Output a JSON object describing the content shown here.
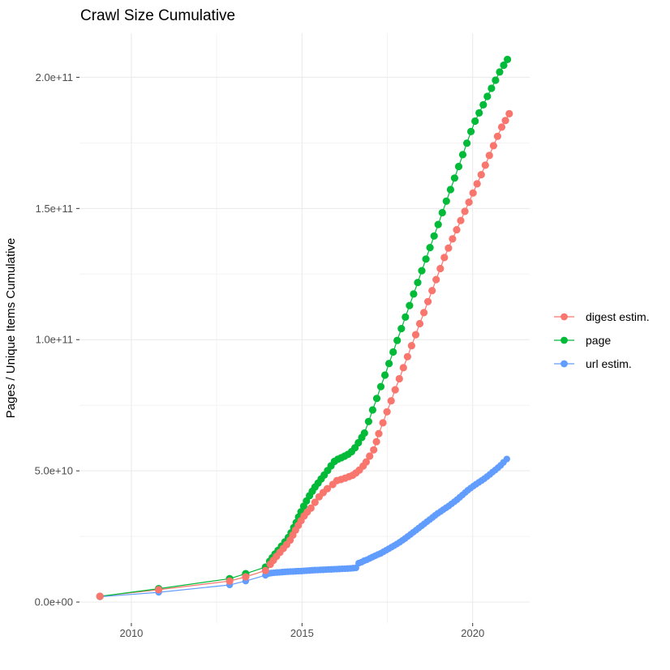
{
  "title": "Crawl Size Cumulative",
  "axes": {
    "y_title": "Pages / Unique Items Cumulative",
    "x_title": "",
    "y_ticks": [
      {
        "label": "0.0e+00",
        "value": 0
      },
      {
        "label": "5.0e+10",
        "value": 50
      },
      {
        "label": "1.0e+11",
        "value": 100
      },
      {
        "label": "1.5e+11",
        "value": 150
      },
      {
        "label": "2.0e+11",
        "value": 200
      }
    ],
    "x_ticks": [
      {
        "label": "2010",
        "value": 2010
      },
      {
        "label": "2015",
        "value": 2015
      },
      {
        "label": "2020",
        "value": 2020
      }
    ]
  },
  "legend": {
    "items": [
      {
        "label": "digest estim.",
        "color": "#F8766D"
      },
      {
        "label": "page",
        "color": "#00BA38"
      },
      {
        "label": "url estim.",
        "color": "#619CFF"
      }
    ]
  },
  "colors": {
    "background": "#FFFFFF",
    "grid_major": "#E9E9E9",
    "grid_minor": "#F3F3F3",
    "tick": "#333333",
    "tick_label": "#4D4D4D",
    "text": "#000000",
    "digest": "#F8766D",
    "page": "#00BA38",
    "url": "#619CFF"
  },
  "chart_data": {
    "type": "line",
    "title": "Crawl Size Cumulative",
    "xlabel": "",
    "ylabel": "Pages / Unique Items Cumulative",
    "y_unit": "values in billions (1e9); axis labels shown in scientific notation",
    "xlim": [
      2008.48,
      2021.67
    ],
    "ylim": [
      -8,
      216.8
    ],
    "x_breaks": [
      2010,
      2015,
      2020
    ],
    "x_minor_breaks": [
      2012.5,
      2017.5
    ],
    "y_breaks": [
      0,
      50,
      100,
      150,
      200
    ],
    "y_minor_breaks": [
      25,
      75,
      125,
      175
    ],
    "grid": true,
    "legend_position": "right",
    "series": [
      {
        "name": "digest estim.",
        "color": "#F8766D",
        "points": [
          [
            2009.08,
            2.2
          ],
          [
            2010.8,
            4.7
          ],
          [
            2012.88,
            8.0
          ],
          [
            2013.35,
            9.6
          ],
          [
            2013.93,
            12.0
          ],
          [
            2014.07,
            14.4
          ],
          [
            2014.16,
            15.9
          ],
          [
            2014.25,
            17.4
          ],
          [
            2014.35,
            18.9
          ],
          [
            2014.45,
            20.4
          ],
          [
            2014.55,
            21.9
          ],
          [
            2014.65,
            23.6
          ],
          [
            2014.73,
            25.5
          ],
          [
            2014.81,
            27.4
          ],
          [
            2014.89,
            29.2
          ],
          [
            2014.97,
            31.0
          ],
          [
            2015.06,
            32.8
          ],
          [
            2015.15,
            34.3
          ],
          [
            2015.26,
            35.8
          ],
          [
            2015.38,
            38.0
          ],
          [
            2015.5,
            40.1
          ],
          [
            2015.62,
            41.7
          ],
          [
            2015.74,
            43.2
          ],
          [
            2015.9,
            44.8
          ],
          [
            2016.02,
            46.3
          ],
          [
            2016.14,
            46.7
          ],
          [
            2016.26,
            47.2
          ],
          [
            2016.38,
            47.8
          ],
          [
            2016.48,
            48.3
          ],
          [
            2016.58,
            49.2
          ],
          [
            2016.68,
            50.3
          ],
          [
            2016.79,
            51.8
          ],
          [
            2016.88,
            53.4
          ],
          [
            2016.98,
            55.6
          ],
          [
            2017.1,
            58.0
          ],
          [
            2017.18,
            61.1
          ],
          [
            2017.25,
            64.2
          ],
          [
            2017.37,
            68.3
          ],
          [
            2017.49,
            72.5
          ],
          [
            2017.61,
            76.7
          ],
          [
            2017.73,
            80.9
          ],
          [
            2017.85,
            85.1
          ],
          [
            2017.97,
            89.3
          ],
          [
            2018.09,
            93.5
          ],
          [
            2018.21,
            97.7
          ],
          [
            2018.33,
            101.9
          ],
          [
            2018.45,
            106.1
          ],
          [
            2018.57,
            110.3
          ],
          [
            2018.69,
            114.5
          ],
          [
            2018.81,
            118.7
          ],
          [
            2018.93,
            122.9
          ],
          [
            2019.05,
            127.1
          ],
          [
            2019.17,
            131.3
          ],
          [
            2019.29,
            134.9
          ],
          [
            2019.41,
            138.4
          ],
          [
            2019.53,
            141.9
          ],
          [
            2019.65,
            145.4
          ],
          [
            2019.77,
            148.9
          ],
          [
            2019.89,
            152.4
          ],
          [
            2020.01,
            155.9
          ],
          [
            2020.13,
            159.4
          ],
          [
            2020.25,
            162.9
          ],
          [
            2020.37,
            166.5
          ],
          [
            2020.49,
            170.2
          ],
          [
            2020.61,
            173.9
          ],
          [
            2020.73,
            177.5
          ],
          [
            2020.85,
            181.0
          ],
          [
            2020.96,
            183.5
          ],
          [
            2021.07,
            186.1
          ]
        ]
      },
      {
        "name": "page",
        "color": "#00BA38",
        "points": [
          [
            2009.08,
            2.15
          ],
          [
            2010.8,
            5.1
          ],
          [
            2012.88,
            8.9
          ],
          [
            2013.35,
            10.8
          ],
          [
            2013.93,
            13.3
          ],
          [
            2014.05,
            15.5
          ],
          [
            2014.13,
            16.9
          ],
          [
            2014.21,
            18.3
          ],
          [
            2014.3,
            19.7
          ],
          [
            2014.4,
            21.3
          ],
          [
            2014.5,
            22.9
          ],
          [
            2014.6,
            24.6
          ],
          [
            2014.68,
            26.4
          ],
          [
            2014.76,
            28.4
          ],
          [
            2014.83,
            30.3
          ],
          [
            2014.9,
            32.4
          ],
          [
            2014.97,
            34.4
          ],
          [
            2015.05,
            36.5
          ],
          [
            2015.13,
            38.5
          ],
          [
            2015.22,
            40.5
          ],
          [
            2015.3,
            42.2
          ],
          [
            2015.38,
            43.8
          ],
          [
            2015.47,
            45.3
          ],
          [
            2015.56,
            46.9
          ],
          [
            2015.65,
            48.4
          ],
          [
            2015.75,
            50.1
          ],
          [
            2015.85,
            51.9
          ],
          [
            2015.95,
            53.6
          ],
          [
            2016.05,
            54.4
          ],
          [
            2016.15,
            55.0
          ],
          [
            2016.25,
            55.6
          ],
          [
            2016.35,
            56.3
          ],
          [
            2016.45,
            57.3
          ],
          [
            2016.55,
            58.8
          ],
          [
            2016.65,
            60.7
          ],
          [
            2016.75,
            62.7
          ],
          [
            2016.83,
            64.4
          ],
          [
            2016.95,
            68.8
          ],
          [
            2017.07,
            73.2
          ],
          [
            2017.19,
            77.6
          ],
          [
            2017.31,
            82.1
          ],
          [
            2017.43,
            86.5
          ],
          [
            2017.55,
            90.9
          ],
          [
            2017.67,
            95.3
          ],
          [
            2017.79,
            99.7
          ],
          [
            2017.91,
            104.2
          ],
          [
            2018.03,
            108.6
          ],
          [
            2018.15,
            113.0
          ],
          [
            2018.27,
            117.4
          ],
          [
            2018.39,
            121.8
          ],
          [
            2018.51,
            126.3
          ],
          [
            2018.63,
            130.7
          ],
          [
            2018.75,
            135.1
          ],
          [
            2018.87,
            139.5
          ],
          [
            2018.99,
            143.9
          ],
          [
            2019.11,
            148.4
          ],
          [
            2019.23,
            152.8
          ],
          [
            2019.35,
            157.2
          ],
          [
            2019.47,
            161.6
          ],
          [
            2019.59,
            166.0
          ],
          [
            2019.71,
            170.5
          ],
          [
            2019.83,
            174.9
          ],
          [
            2019.95,
            179.3
          ],
          [
            2020.07,
            183.3
          ],
          [
            2020.19,
            186.4
          ],
          [
            2020.31,
            189.5
          ],
          [
            2020.43,
            192.7
          ],
          [
            2020.55,
            195.8
          ],
          [
            2020.67,
            198.9
          ],
          [
            2020.79,
            202.0
          ],
          [
            2020.91,
            204.6
          ],
          [
            2021.02,
            206.8
          ]
        ]
      },
      {
        "name": "url estim.",
        "color": "#619CFF",
        "points": [
          [
            2009.08,
            2.0
          ],
          [
            2010.8,
            3.7
          ],
          [
            2012.88,
            6.5
          ],
          [
            2013.35,
            8.0
          ],
          [
            2013.93,
            10.2
          ],
          [
            2014.03,
            10.9
          ],
          [
            2014.1,
            11.05
          ],
          [
            2014.18,
            11.15
          ],
          [
            2014.26,
            11.25
          ],
          [
            2014.34,
            11.3
          ],
          [
            2014.42,
            11.4
          ],
          [
            2014.5,
            11.5
          ],
          [
            2014.58,
            11.55
          ],
          [
            2014.66,
            11.6
          ],
          [
            2014.74,
            11.65
          ],
          [
            2014.82,
            11.7
          ],
          [
            2014.9,
            11.75
          ],
          [
            2014.98,
            11.8
          ],
          [
            2015.06,
            11.9
          ],
          [
            2015.14,
            11.95
          ],
          [
            2015.22,
            12.0
          ],
          [
            2015.3,
            12.1
          ],
          [
            2015.38,
            12.15
          ],
          [
            2015.46,
            12.2
          ],
          [
            2015.54,
            12.25
          ],
          [
            2015.62,
            12.3
          ],
          [
            2015.7,
            12.35
          ],
          [
            2015.78,
            12.4
          ],
          [
            2015.86,
            12.45
          ],
          [
            2015.94,
            12.5
          ],
          [
            2016.02,
            12.55
          ],
          [
            2016.1,
            12.6
          ],
          [
            2016.18,
            12.65
          ],
          [
            2016.26,
            12.7
          ],
          [
            2016.34,
            12.75
          ],
          [
            2016.42,
            12.8
          ],
          [
            2016.5,
            12.9
          ],
          [
            2016.58,
            13.0
          ],
          [
            2016.66,
            14.8
          ],
          [
            2016.74,
            15.2
          ],
          [
            2016.82,
            15.7
          ],
          [
            2016.9,
            16.1
          ],
          [
            2016.98,
            16.6
          ],
          [
            2017.06,
            17.1
          ],
          [
            2017.14,
            17.6
          ],
          [
            2017.22,
            18.1
          ],
          [
            2017.3,
            18.5
          ],
          [
            2017.38,
            19.1
          ],
          [
            2017.46,
            19.7
          ],
          [
            2017.54,
            20.3
          ],
          [
            2017.62,
            20.9
          ],
          [
            2017.7,
            21.5
          ],
          [
            2017.78,
            22.1
          ],
          [
            2017.86,
            22.8
          ],
          [
            2017.94,
            23.5
          ],
          [
            2018.02,
            24.2
          ],
          [
            2018.1,
            25.0
          ],
          [
            2018.18,
            25.8
          ],
          [
            2018.26,
            26.6
          ],
          [
            2018.34,
            27.4
          ],
          [
            2018.42,
            28.2
          ],
          [
            2018.5,
            29.0
          ],
          [
            2018.58,
            29.8
          ],
          [
            2018.66,
            30.6
          ],
          [
            2018.74,
            31.4
          ],
          [
            2018.82,
            32.2
          ],
          [
            2018.9,
            33.0
          ],
          [
            2018.98,
            33.8
          ],
          [
            2019.06,
            34.5
          ],
          [
            2019.14,
            35.2
          ],
          [
            2019.22,
            35.9
          ],
          [
            2019.3,
            36.6
          ],
          [
            2019.38,
            37.4
          ],
          [
            2019.46,
            38.2
          ],
          [
            2019.54,
            39.0
          ],
          [
            2019.62,
            39.9
          ],
          [
            2019.7,
            40.8
          ],
          [
            2019.78,
            41.7
          ],
          [
            2019.86,
            42.6
          ],
          [
            2019.94,
            43.4
          ],
          [
            2020.02,
            44.2
          ],
          [
            2020.1,
            44.9
          ],
          [
            2020.18,
            45.6
          ],
          [
            2020.26,
            46.3
          ],
          [
            2020.34,
            47.0
          ],
          [
            2020.42,
            47.8
          ],
          [
            2020.5,
            48.6
          ],
          [
            2020.58,
            49.5
          ],
          [
            2020.66,
            50.3
          ],
          [
            2020.74,
            51.2
          ],
          [
            2020.82,
            52.1
          ],
          [
            2020.9,
            53.2
          ],
          [
            2021.0,
            54.5
          ]
        ]
      }
    ]
  }
}
